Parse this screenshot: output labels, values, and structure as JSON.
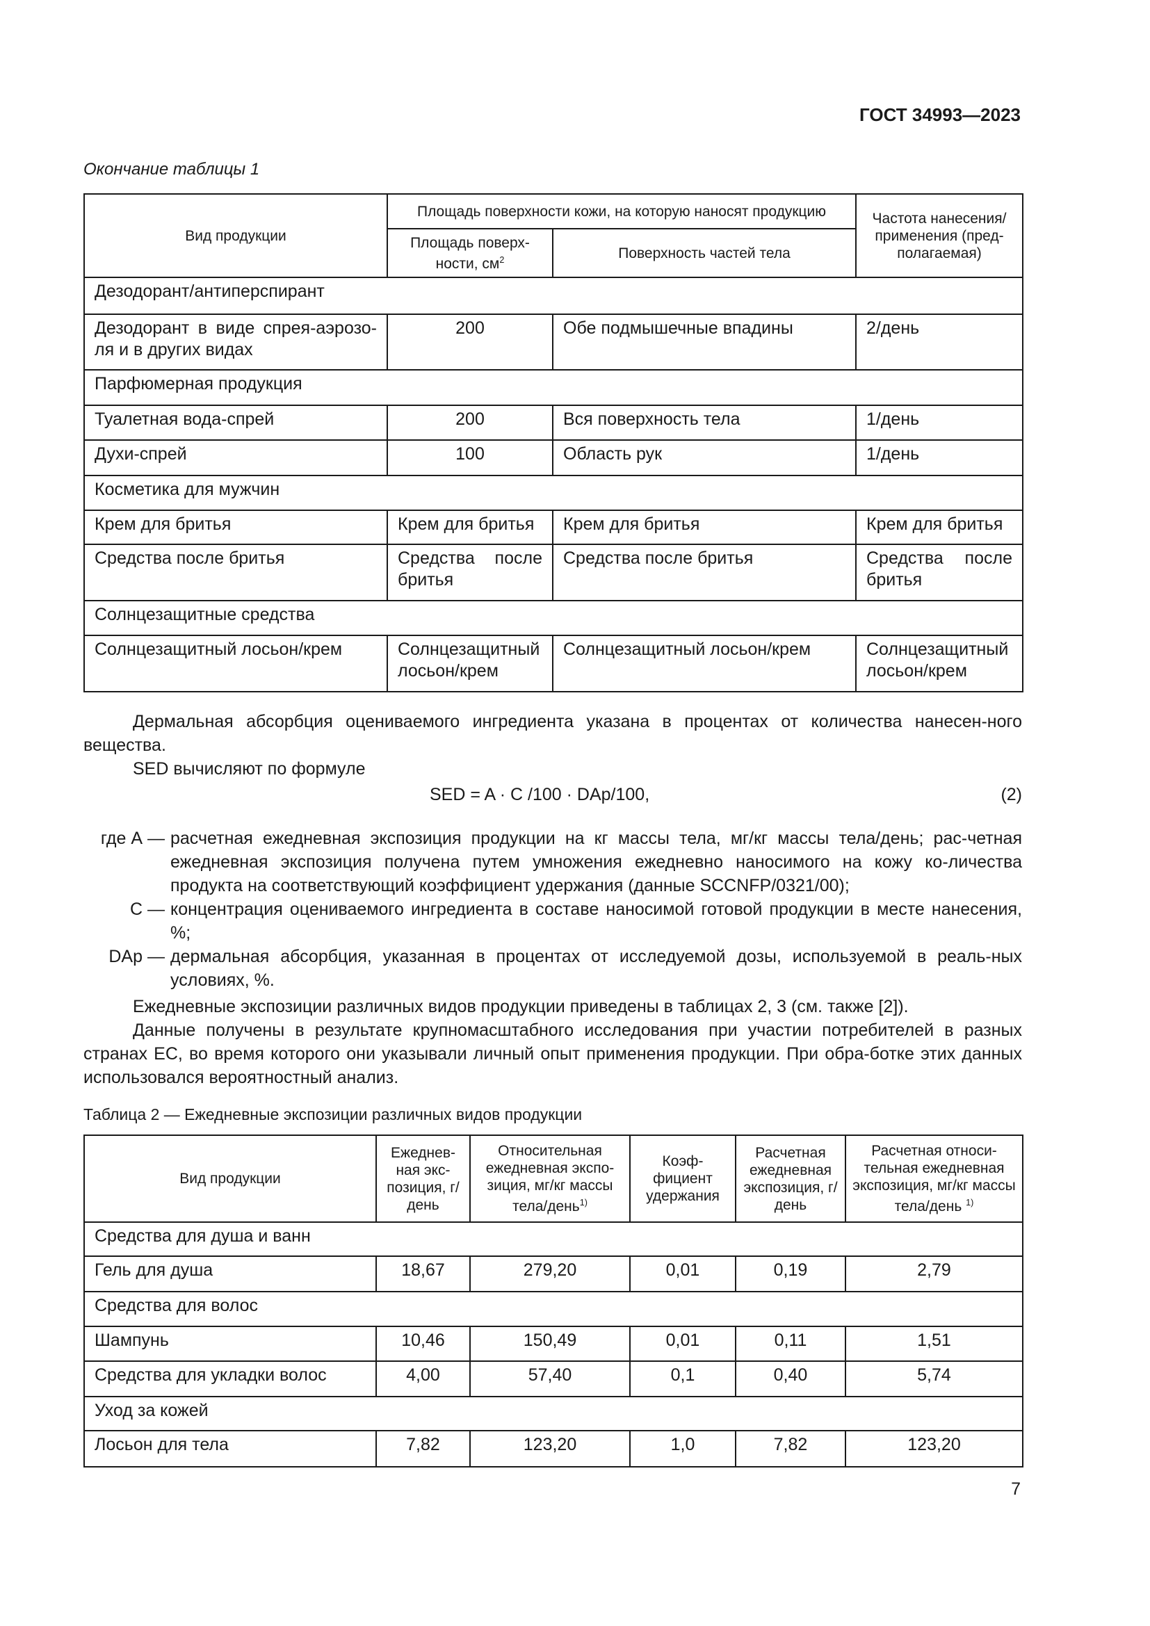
{
  "header": {
    "doc_id": "ГОСТ 34993—2023"
  },
  "table1": {
    "caption": "Окончание таблицы 1",
    "headers": {
      "product": "Вид продукции",
      "area_group": "Площадь поверхности кожи, на которую наносят продукцию",
      "area": "Площадь поверх-ности, см",
      "area_sup": "2",
      "body_parts": "Поверхность частей тела",
      "frequency": "Частота нанесения/ применения (пред-полагаемая)"
    },
    "rows": [
      {
        "group": "Дезодорант/антиперспирант"
      },
      {
        "product": "Дезодорант в виде спрея-аэрозо-ля и в других видах",
        "area": "200",
        "parts": "Обе подмышечные впадины",
        "freq": "2/день"
      },
      {
        "group": "Парфюмерная продукция"
      },
      {
        "product": "Туалетная вода-спрей",
        "area": "200",
        "parts": "Вся поверхность тела",
        "freq": "1/день"
      },
      {
        "product": "Духи-спрей",
        "area": "100",
        "parts": "Область рук",
        "freq": "1/день"
      },
      {
        "group": "Косметика для мужчин"
      },
      {
        "product": "Крем для бритья",
        "area": "Крем для бритья",
        "parts": "Крем для бритья",
        "freq": "Крем для бритья"
      },
      {
        "product": "Средства после бритья",
        "area": "Средства после бритья",
        "parts": "Средства после бритья",
        "freq": "Средства после бритья"
      },
      {
        "group": "Солнцезащитные средства"
      },
      {
        "product": "Солнцезащитный лосьон/крем",
        "area": "Солнцезащитный лосьон/крем",
        "parts": "Солнцезащитный лосьон/крем",
        "freq": "Солнцезащитный лосьон/крем"
      }
    ]
  },
  "text": {
    "p1": "Дермальная абсорбция оцениваемого ингредиента указана в процентах от количества нанесен-ного вещества.",
    "p2": "SED вычисляют по формуле",
    "formula": "SED = A · C /100 · DAp/100,",
    "formula_num": "(2)",
    "defs": [
      {
        "term": "где А",
        "text": "расчетная ежедневная экспозиция продукции на кг массы тела, мг/кг массы тела/день; рас-четная ежедневная экспозиция получена путем умножения ежедневно наносимого на кожу ко-личества продукта на соответствующий коэффициент удержания (данные SCCNFP/0321/00);"
      },
      {
        "term": "С",
        "text": "концентрация оцениваемого ингредиента в составе наносимой готовой продукции в месте нанесения, %;"
      },
      {
        "term": "DAp",
        "text": "дермальная абсорбция, указанная в процентах от исследуемой дозы, используемой в реаль-ных условиях, %."
      }
    ],
    "dash": "—",
    "p3": "Ежедневные экспозиции различных видов продукции приведены в таблицах 2, 3 (см. также [2]).",
    "p4": "Данные получены в результате крупномасштабного исследования при участии потребителей в разных странах ЕС, во время которого они указывали личный опыт применения продукции. При обра-ботке этих данных использовался вероятностный анализ."
  },
  "table2": {
    "caption": "Таблица 2 — Ежедневные экспозиции различных видов продукции",
    "headers": [
      "Вид продукции",
      "Ежеднев-ная экс-позиция, г/день",
      "Относительная ежедневная экспо-зиция, мг/кг массы тела/день",
      "Коэф-фициент удержания",
      "Расчетная ежедневная экспозиция, г/день",
      "Расчетная относи-тельная ежедневная экспозиция, мг/кг массы тела/день"
    ],
    "footnote_mark": "1)",
    "rows": [
      {
        "group": "Средства для душа и ванн"
      },
      {
        "cells": [
          "Гель для душа",
          "18,67",
          "279,20",
          "0,01",
          "0,19",
          "2,79"
        ]
      },
      {
        "group": "Средства для волос"
      },
      {
        "cells": [
          "Шампунь",
          "10,46",
          "150,49",
          "0,01",
          "0,11",
          "1,51"
        ]
      },
      {
        "cells": [
          "Средства для укладки волос",
          "4,00",
          "57,40",
          "0,1",
          "0,40",
          "5,74"
        ]
      },
      {
        "group": "Уход за кожей"
      },
      {
        "cells": [
          "Лосьон для тела",
          "7,82",
          "123,20",
          "1,0",
          "7,82",
          "123,20"
        ]
      }
    ]
  },
  "footer": {
    "page_number": "7"
  }
}
